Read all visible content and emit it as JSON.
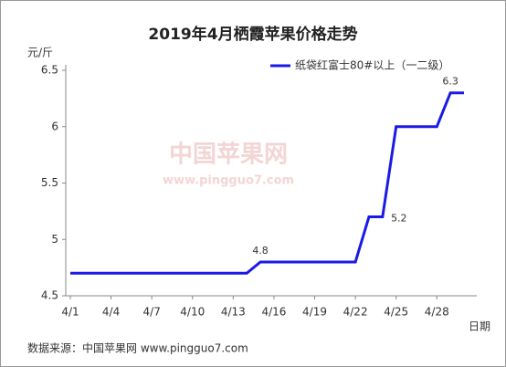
{
  "chart_data": {
    "type": "line",
    "title": "2019年4月栖霞苹果价格走势",
    "y_unit": "元/斤",
    "x_label": "日期",
    "source": "数据来源：中国苹果网 www.pingguo7.com",
    "watermark": [
      "中国苹果网",
      "www.pingguo7.com"
    ],
    "categories": [
      "4/1",
      null,
      null,
      "4/4",
      null,
      null,
      "4/7",
      null,
      null,
      "4/10",
      null,
      null,
      "4/13",
      null,
      null,
      "4/16",
      null,
      null,
      "4/19",
      null,
      null,
      "4/22",
      null,
      null,
      "4/25",
      null,
      null,
      "4/28",
      null,
      null
    ],
    "series": [
      {
        "name": "纸袋红富士80#以上（一二级）",
        "color": "#1a1ae6",
        "values": [
          4.7,
          4.7,
          4.7,
          4.7,
          4.7,
          4.7,
          4.7,
          4.7,
          4.7,
          4.7,
          4.7,
          4.7,
          4.7,
          4.7,
          4.8,
          4.8,
          4.8,
          4.8,
          4.8,
          4.8,
          4.8,
          4.8,
          5.2,
          5.2,
          6,
          6,
          6,
          6,
          6.3,
          6.3
        ],
        "value_labels": [
          null,
          null,
          null,
          null,
          null,
          null,
          null,
          null,
          null,
          null,
          null,
          null,
          null,
          null,
          "4.8",
          null,
          null,
          null,
          null,
          null,
          null,
          null,
          null,
          "5.2",
          null,
          null,
          null,
          null,
          "6.3",
          null
        ]
      }
    ],
    "ylim": [
      4.5,
      6.5
    ],
    "yticks": [
      4.5,
      5,
      5.5,
      6,
      6.5
    ],
    "grid": false,
    "legend": "top-right"
  }
}
